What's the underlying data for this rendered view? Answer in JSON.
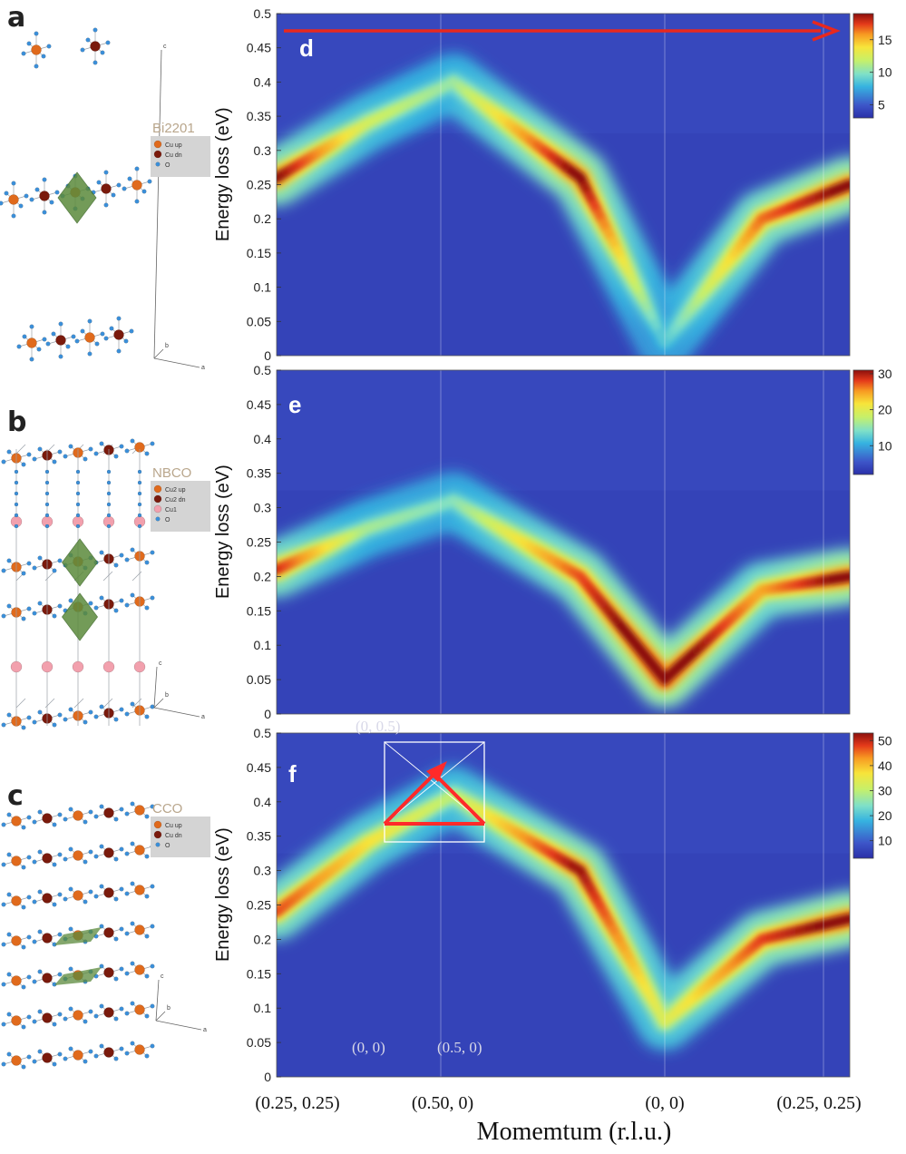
{
  "panels": {
    "a": "a",
    "b": "b",
    "c": "c",
    "d": "d",
    "e": "e",
    "f": "f"
  },
  "structures": [
    {
      "panel": "a",
      "compound": "Bi2201",
      "legend": [
        "Cu up",
        "Cu dn",
        "O"
      ],
      "axes": [
        "c",
        "b",
        "a"
      ],
      "colors": {
        "cu_up": "#e06a1c",
        "cu_dn": "#7a1a0c",
        "o": "#3b8fd9",
        "octahedron": "#5b8a3c"
      }
    },
    {
      "panel": "b",
      "compound": "NBCO",
      "legend": [
        "Cu2 up",
        "Cu2 dn",
        "Cu1",
        "O"
      ],
      "axes": [
        "c",
        "b",
        "a"
      ],
      "colors": {
        "cu_up": "#e06a1c",
        "cu_dn": "#7a1a0c",
        "cu1": "#f2a0ad",
        "o": "#3b8fd9",
        "octahedron": "#5b8a3c"
      }
    },
    {
      "panel": "c",
      "compound": "CCO",
      "legend": [
        "Cu up",
        "Cu dn",
        "O"
      ],
      "axes": [
        "c",
        "b",
        "a"
      ],
      "colors": {
        "cu_up": "#e06a1c",
        "cu_dn": "#7a1a0c",
        "o": "#3b8fd9",
        "octahedron": "#5b8a3c"
      }
    }
  ],
  "inset": {
    "labels": [
      "(0, 0.5)",
      "(0, 0)",
      "(0.5, 0)"
    ]
  },
  "chart_data": [
    {
      "type": "heatmap",
      "panel": "d",
      "ylabel": "Energy loss (eV)",
      "ylim": [
        0,
        0.5
      ],
      "yticks": [
        "0.5",
        "0.45",
        "0.4",
        "0.35",
        "0.3",
        "0.25",
        "0.2",
        "0.15",
        "0.1",
        "0.05",
        "0"
      ],
      "colorbar": {
        "ticks": [
          "15",
          "10",
          "5"
        ],
        "range": [
          3,
          19
        ]
      },
      "dispersion": {
        "x": [
          0,
          0.5,
          1,
          1.5,
          2,
          2.5,
          3
        ],
        "energy": [
          0.26,
          0.34,
          0.4,
          0.26,
          0.02,
          0.2,
          0.25
        ],
        "peak_intensity": [
          17,
          10,
          8,
          17,
          6,
          14,
          17
        ]
      },
      "colormap": "jet",
      "arrow": "red scan-direction arrow at top, pointing right"
    },
    {
      "type": "heatmap",
      "panel": "e",
      "ylabel": "Energy loss (eV)",
      "ylim": [
        0,
        0.5
      ],
      "yticks": [
        "0.5",
        "0.45",
        "0.4",
        "0.35",
        "0.3",
        "0.25",
        "0.2",
        "0.15",
        "0.1",
        "0.05",
        "0"
      ],
      "colorbar": {
        "ticks": [
          "30",
          "20",
          "10"
        ],
        "range": [
          2,
          31
        ]
      },
      "dispersion": {
        "x": [
          0,
          0.5,
          1,
          1.5,
          2,
          2.5,
          3
        ],
        "energy": [
          0.21,
          0.27,
          0.31,
          0.2,
          0.05,
          0.18,
          0.2
        ],
        "peak_intensity": [
          25,
          12,
          10,
          23,
          30,
          20,
          28
        ]
      },
      "colormap": "jet"
    },
    {
      "type": "heatmap",
      "panel": "f",
      "ylabel": "Energy loss (eV)",
      "ylim": [
        0,
        0.5
      ],
      "yticks": [
        "0.5",
        "0.45",
        "0.4",
        "0.35",
        "0.3",
        "0.25",
        "0.2",
        "0.15",
        "0.1",
        "0.05",
        "0"
      ],
      "xticks": [
        "(0.25, 0.25)",
        "(0.50, 0)",
        "(0, 0)",
        "(0.25, 0.25)"
      ],
      "xlabel": "Momemtum (r.l.u.)",
      "colorbar": {
        "ticks": [
          "50",
          "40",
          "30",
          "20",
          "10"
        ],
        "range": [
          3,
          53
        ]
      },
      "dispersion": {
        "x": [
          0,
          0.5,
          1,
          1.5,
          2,
          2.5,
          3
        ],
        "energy": [
          0.24,
          0.34,
          0.41,
          0.3,
          0.08,
          0.2,
          0.23
        ],
        "peak_intensity": [
          40,
          30,
          22,
          45,
          25,
          40,
          48
        ]
      },
      "colormap": "jet"
    }
  ]
}
